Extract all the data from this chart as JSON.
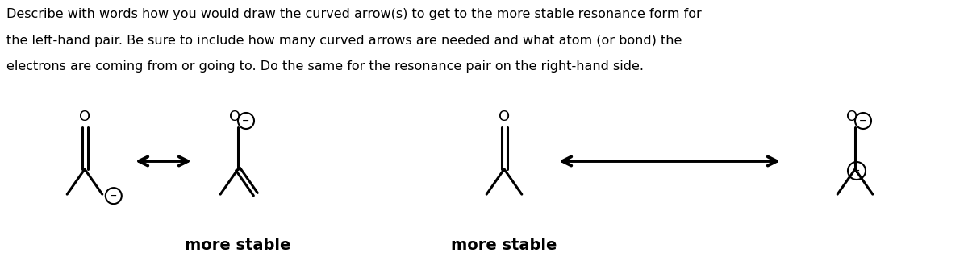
{
  "title_lines": [
    "Describe with words how you would draw the curved arrow(s) to get to the more stable resonance form for",
    "the left-hand pair. Be sure to include how many curved arrows are needed and what atom (or bond) the",
    "electrons are coming from or going to. Do the same for the resonance pair on the right-hand side."
  ],
  "title_fontsize": 11.5,
  "title_color": "#000000",
  "bg_color": "#ffffff",
  "more_stable_fontsize": 14,
  "more_stable_fontweight": "bold",
  "lw": 2.5,
  "mol_lw": 2.2,
  "charge_fontsize": 9,
  "o_fontsize": 13
}
